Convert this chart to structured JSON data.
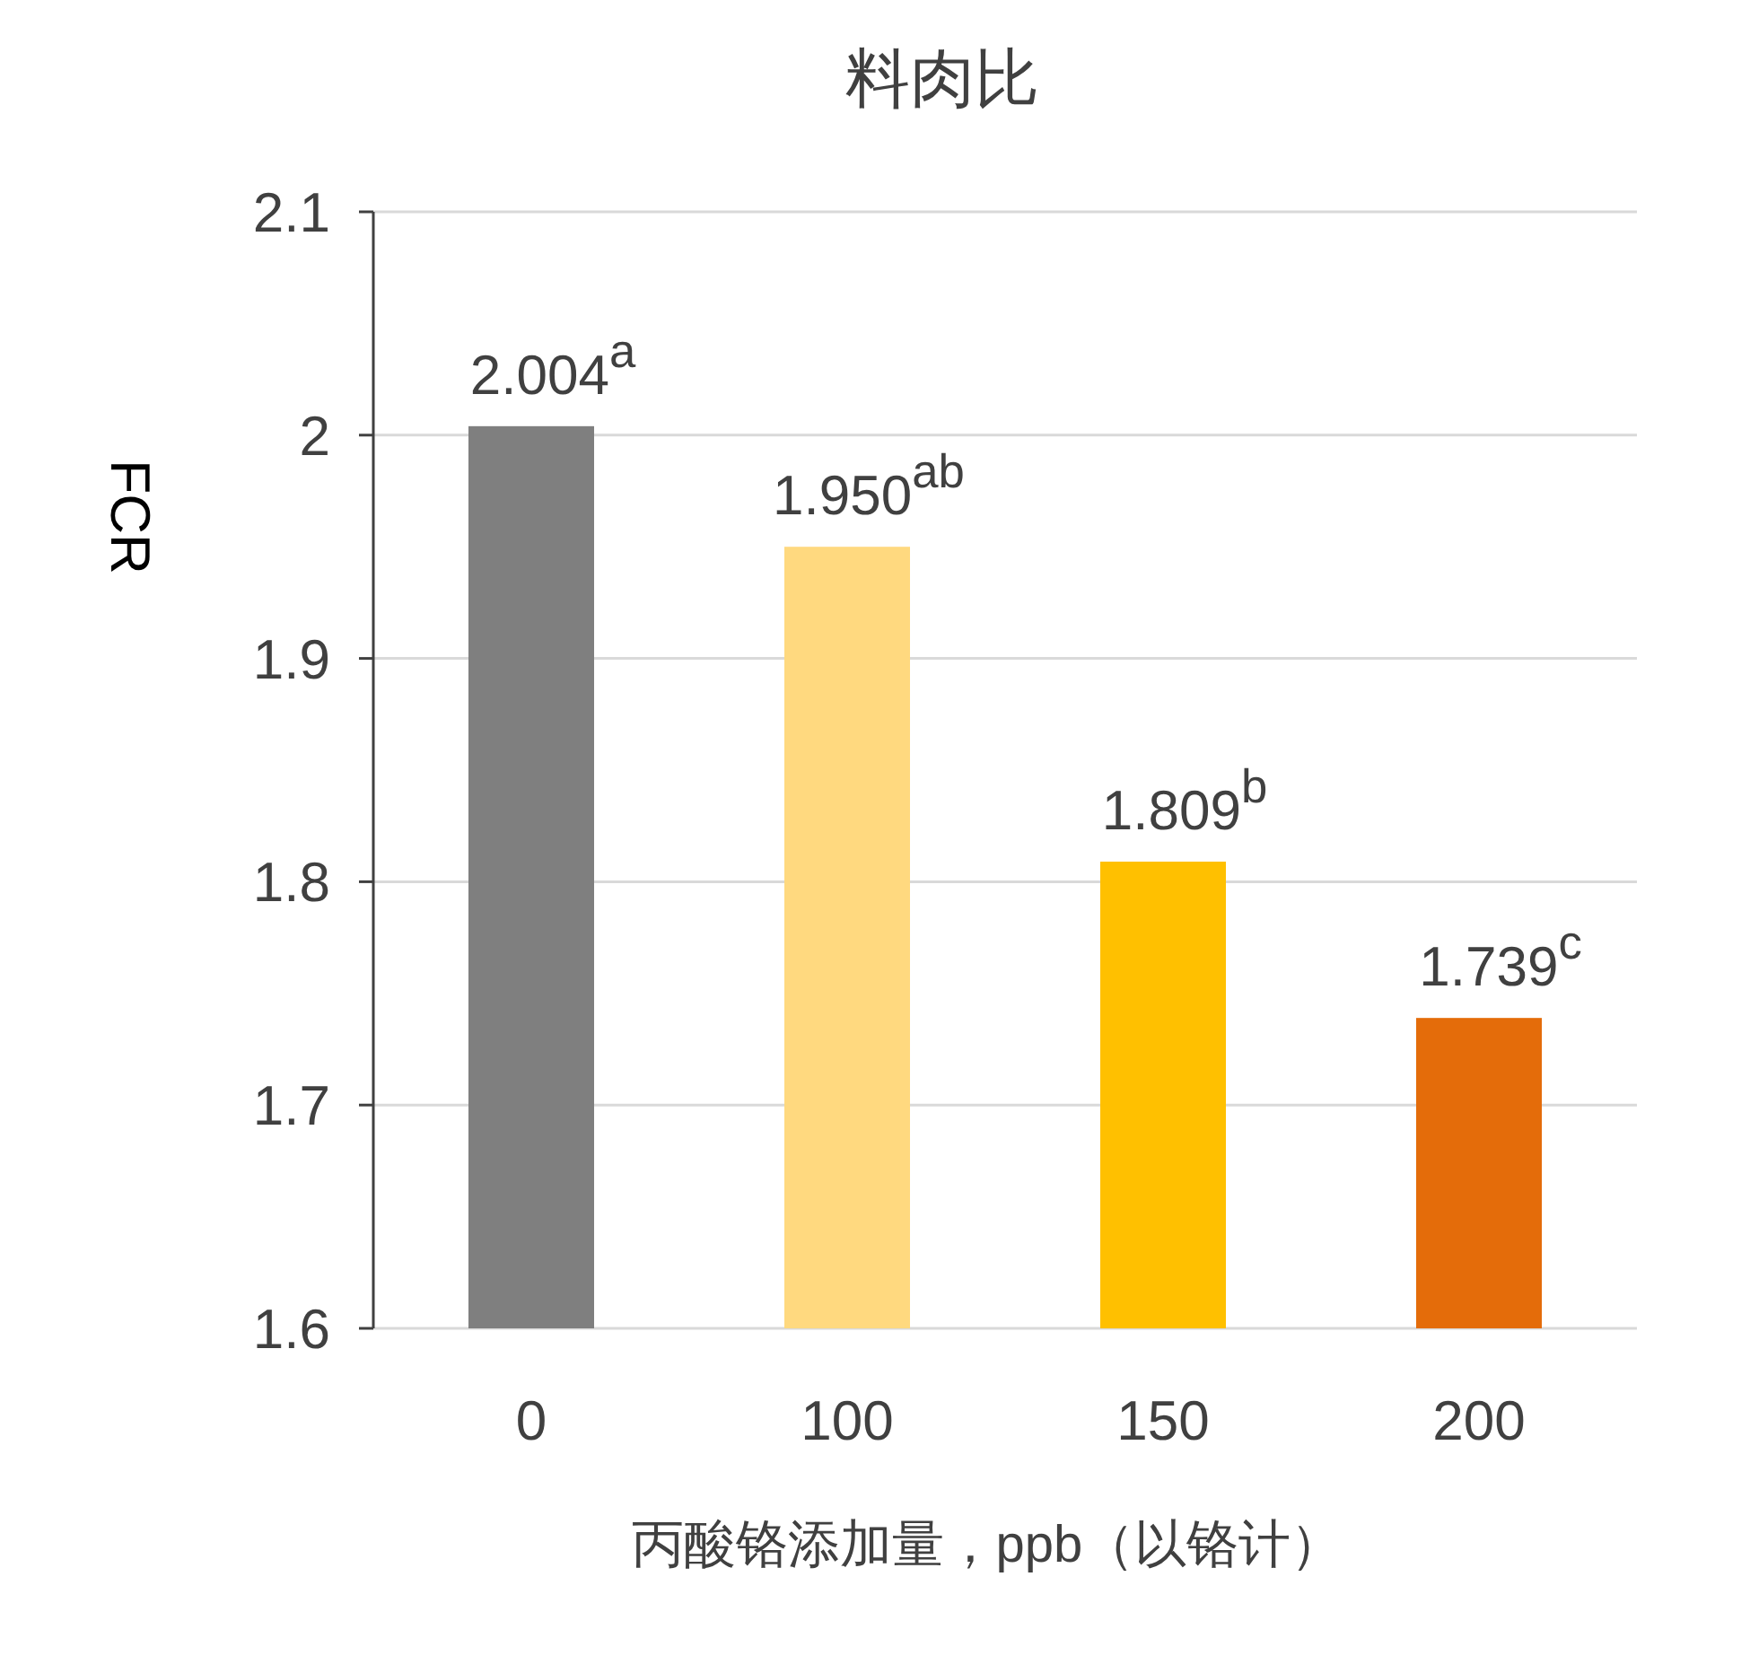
{
  "chart_data": {
    "type": "bar",
    "title": "料肉比",
    "xlabel": "丙酸铬添加量，ppb（以铬计）",
    "ylabel": "FCR",
    "categories": [
      "0",
      "100",
      "150",
      "200"
    ],
    "values": [
      2.004,
      1.95,
      1.809,
      1.739
    ],
    "colors": [
      "#7f7f7f",
      "#ffd97f",
      "#ffc000",
      "#e46c0a"
    ],
    "value_labels": [
      "2.004$^{a}$",
      "1.950$^{ab}$",
      "1.809$^{b}$",
      "1.739$^{c}$"
    ],
    "ylim": [
      1.6,
      2.1
    ],
    "yticks": [
      1.6,
      1.7,
      1.8,
      1.9,
      2,
      2.1
    ],
    "grid": "y"
  }
}
